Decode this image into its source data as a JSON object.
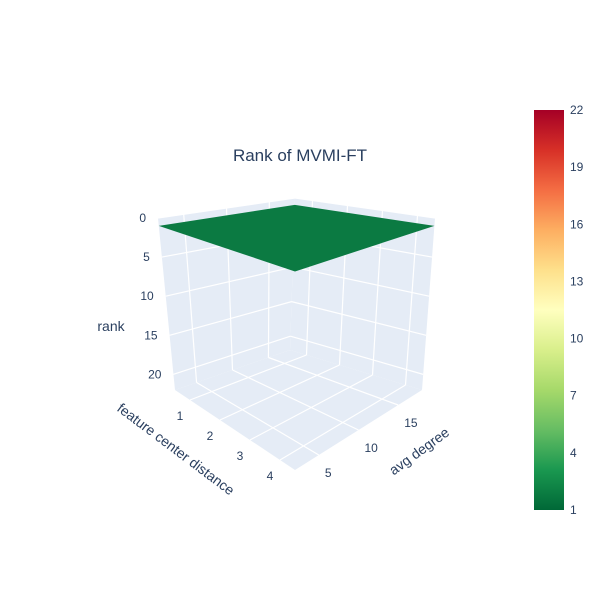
{
  "chart_data": {
    "type": "surface",
    "title": "Rank of MVMI-FT",
    "x": {
      "label": "feature center distance",
      "ticks": [
        "1",
        "2",
        "3",
        "4"
      ],
      "range": [
        0.5,
        4.5
      ]
    },
    "y": {
      "label": "avg degree",
      "ticks": [
        "5",
        "10",
        "15"
      ],
      "range": [
        2,
        18
      ]
    },
    "z": {
      "label": "rank",
      "ticks": [
        "0",
        "5",
        "10",
        "15",
        "20"
      ],
      "range": [
        0,
        22
      ],
      "reversed": true
    },
    "surface": {
      "x": [
        0.5,
        4.5
      ],
      "y": [
        2,
        18
      ],
      "z": [
        [
          1,
          1
        ],
        [
          1,
          1
        ]
      ],
      "color": "#0b7a42"
    },
    "colorbar": {
      "ticks": [
        "1",
        "4",
        "7",
        "10",
        "13",
        "16",
        "19",
        "22"
      ],
      "colorscale": [
        "#006837",
        "#1a9850",
        "#66bd63",
        "#a6d96a",
        "#d9ef8b",
        "#ffffbf",
        "#fee08b",
        "#fdae61",
        "#f46d43",
        "#d73027",
        "#a50026"
      ]
    },
    "background": "#e5ecf6",
    "grid": true
  }
}
